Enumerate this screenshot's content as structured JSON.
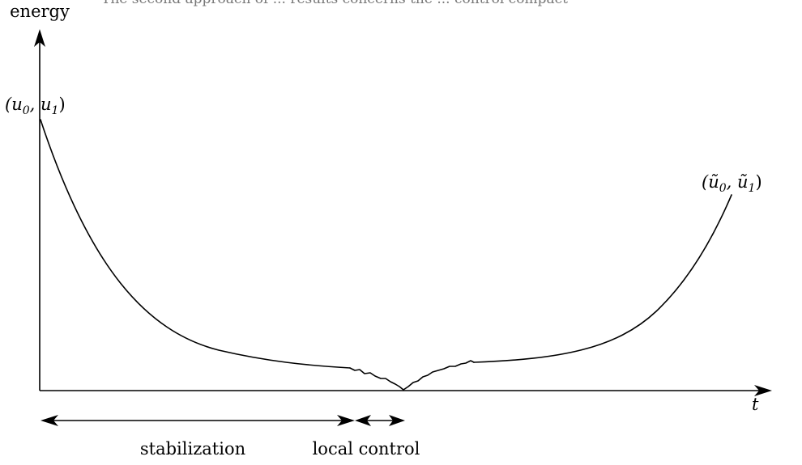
{
  "caption_fragment": "The second approach of ... results concerns the ... control compact",
  "axes": {
    "y_label": "energy",
    "x_label": "t"
  },
  "start_point": {
    "label_open": "(u",
    "sub_0": "0",
    "label_mid": ", u",
    "sub_1": "1",
    "label_close": ")"
  },
  "end_point": {
    "label_open": "(ũ",
    "sub_0": "0",
    "label_mid": ", ũ",
    "sub_1": "1",
    "label_close": ")"
  },
  "phases": {
    "stabilization": "stabilization",
    "local_control": "local control"
  }
}
